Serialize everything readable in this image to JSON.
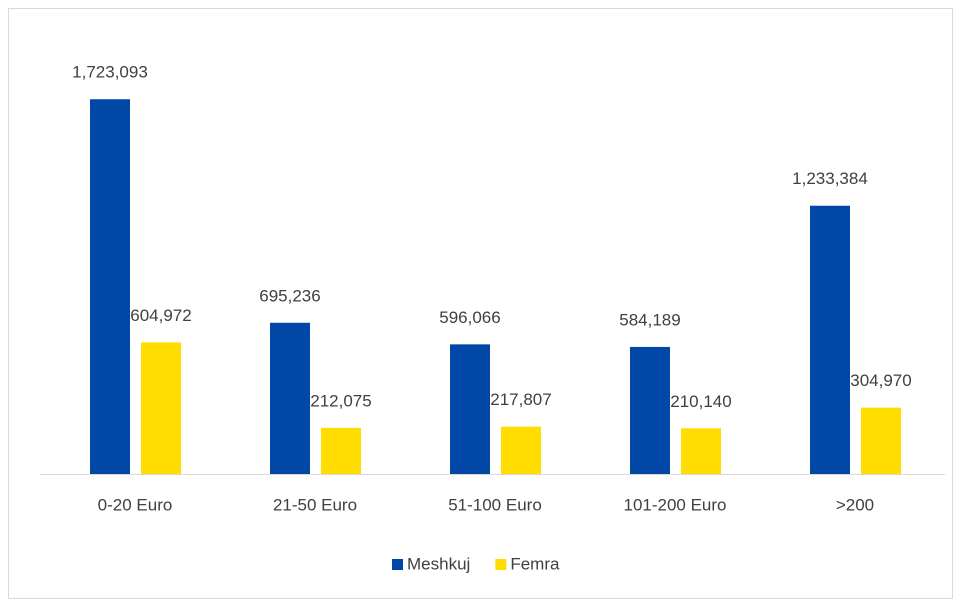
{
  "chart_data": {
    "type": "bar",
    "categories": [
      "0-20 Euro",
      "21-50 Euro",
      "51-100 Euro",
      "101-200 Euro",
      ">200"
    ],
    "series": [
      {
        "name": "Meshkuj",
        "color": "#0047a8",
        "values": [
          1723093,
          695236,
          596066,
          584189,
          1233384
        ],
        "value_labels": [
          "1,723,093",
          "695,236",
          "596,066",
          "584,189",
          "1,233,384"
        ]
      },
      {
        "name": "Femra",
        "color": "#ffdd00",
        "values": [
          604972,
          212075,
          217807,
          210140,
          304970
        ],
        "value_labels": [
          "604,972",
          "212,075",
          "217,807",
          "210,140",
          "304,970"
        ]
      }
    ],
    "ylim": [
      0,
      2000000
    ],
    "legend": "bottom"
  }
}
